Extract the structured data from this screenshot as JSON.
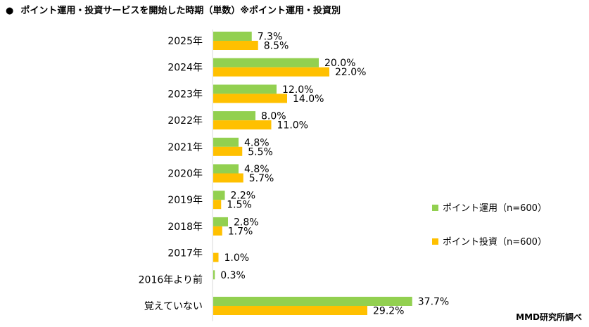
{
  "title": {
    "bullet": "●",
    "text": "ポイント運用・投資サービスを開始した時期（単数）※ポイント運用・投資別"
  },
  "credit": "MMD研究所調べ",
  "chart_data": {
    "type": "bar",
    "orientation": "horizontal",
    "categories": [
      "2025年",
      "2024年",
      "2023年",
      "2022年",
      "2021年",
      "2020年",
      "2019年",
      "2018年",
      "2017年",
      "2016年より前",
      "覚えていない"
    ],
    "series": [
      {
        "name": "ポイント運用（n=600）",
        "color": "#92d050",
        "values": [
          7.3,
          20.0,
          12.0,
          8.0,
          4.8,
          4.8,
          2.2,
          2.8,
          null,
          0.3,
          37.7
        ],
        "labels": [
          "7.3%",
          "20.0%",
          "12.0%",
          "8.0%",
          "4.8%",
          "4.8%",
          "2.2%",
          "2.8%",
          "",
          "0.3%",
          "37.7%"
        ]
      },
      {
        "name": "ポイント投資（n=600）",
        "color": "#ffc000",
        "values": [
          8.5,
          22.0,
          14.0,
          11.0,
          5.5,
          5.7,
          1.5,
          1.7,
          1.0,
          null,
          29.2
        ],
        "labels": [
          "8.5%",
          "22.0%",
          "14.0%",
          "11.0%",
          "5.5%",
          "5.7%",
          "1.5%",
          "1.7%",
          "1.0%",
          "",
          "29.2%"
        ]
      }
    ],
    "unit": "%",
    "legend_position": "right"
  }
}
